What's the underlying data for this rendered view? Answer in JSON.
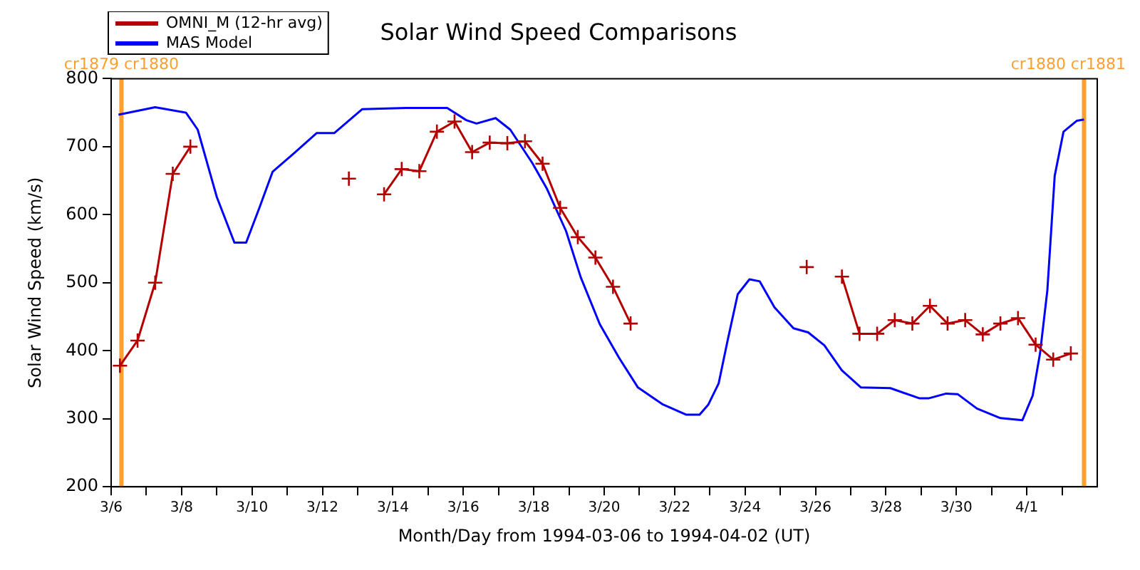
{
  "chart_data": {
    "type": "line",
    "title": "Solar Wind Speed Comparisons",
    "xlabel": "Month/Day from 1994-03-06 to 1994-04-02 (UT)",
    "ylabel": "Solar Wind Speed (km/s)",
    "xlim": [
      "1994-03-06",
      "1994-04-03"
    ],
    "xticks": [
      {
        "value": "1994-03-06",
        "label": "3/6"
      },
      {
        "value": "1994-03-07",
        "label": null
      },
      {
        "value": "1994-03-08",
        "label": "3/8"
      },
      {
        "value": "1994-03-09",
        "label": null
      },
      {
        "value": "1994-03-10",
        "label": "3/10"
      },
      {
        "value": "1994-03-11",
        "label": null
      },
      {
        "value": "1994-03-12",
        "label": "3/12"
      },
      {
        "value": "1994-03-13",
        "label": null
      },
      {
        "value": "1994-03-14",
        "label": "3/14"
      },
      {
        "value": "1994-03-15",
        "label": null
      },
      {
        "value": "1994-03-16",
        "label": "3/16"
      },
      {
        "value": "1994-03-17",
        "label": null
      },
      {
        "value": "1994-03-18",
        "label": "3/18"
      },
      {
        "value": "1994-03-19",
        "label": null
      },
      {
        "value": "1994-03-20",
        "label": "3/20"
      },
      {
        "value": "1994-03-21",
        "label": null
      },
      {
        "value": "1994-03-22",
        "label": "3/22"
      },
      {
        "value": "1994-03-23",
        "label": null
      },
      {
        "value": "1994-03-24",
        "label": "3/24"
      },
      {
        "value": "1994-03-25",
        "label": null
      },
      {
        "value": "1994-03-26",
        "label": "3/26"
      },
      {
        "value": "1994-03-27",
        "label": null
      },
      {
        "value": "1994-03-28",
        "label": "3/28"
      },
      {
        "value": "1994-03-29",
        "label": null
      },
      {
        "value": "1994-03-30",
        "label": "3/30"
      },
      {
        "value": "1994-03-31",
        "label": null
      },
      {
        "value": "1994-04-01",
        "label": "4/1"
      },
      {
        "value": "1994-04-02",
        "label": null
      }
    ],
    "ylim": [
      200,
      800
    ],
    "yticks": [
      200,
      300,
      400,
      500,
      600,
      700,
      800
    ],
    "grid": false,
    "legend": "top left",
    "ref_lines": [
      {
        "axis": "x",
        "value": "1994-03-06T07:00",
        "label": "cr1879 cr1880",
        "color": "#ff9f2f"
      },
      {
        "axis": "x",
        "value": "1994-04-02T15:00",
        "label": "cr1880 cr1881",
        "color": "#ff9f2f"
      }
    ],
    "series": [
      {
        "name": "OMNI_M (12-hr avg)",
        "color": "#b40000",
        "marker": "cross",
        "x": [
          "1994-03-06T06:00",
          "1994-03-06T18:00",
          "1994-03-07T06:00",
          "1994-03-07T18:00",
          "1994-03-08T06:00",
          "1994-03-08T18:00",
          "1994-03-12T18:00",
          "1994-03-13T06:00",
          "1994-03-13T18:00",
          "1994-03-14T06:00",
          "1994-03-14T18:00",
          "1994-03-15T06:00",
          "1994-03-15T18:00",
          "1994-03-16T06:00",
          "1994-03-16T18:00",
          "1994-03-17T06:00",
          "1994-03-17T18:00",
          "1994-03-18T06:00",
          "1994-03-18T18:00",
          "1994-03-19T06:00",
          "1994-03-19T18:00",
          "1994-03-20T06:00",
          "1994-03-20T18:00",
          "1994-03-21T06:00",
          "1994-03-25T18:00",
          "1994-03-26T06:00",
          "1994-03-26T18:00",
          "1994-03-27T06:00",
          "1994-03-27T18:00",
          "1994-03-28T06:00",
          "1994-03-28T18:00",
          "1994-03-29T06:00",
          "1994-03-29T18:00",
          "1994-03-30T06:00",
          "1994-03-30T18:00",
          "1994-03-31T06:00",
          "1994-03-31T18:00",
          "1994-04-01T06:00",
          "1994-04-01T18:00",
          "1994-04-02T06:00"
        ],
        "values": [
          378,
          415,
          500,
          660,
          700,
          null,
          653,
          null,
          630,
          667,
          664,
          722,
          737,
          692,
          706,
          705,
          708,
          675,
          610,
          567,
          537,
          494,
          440,
          null,
          523,
          null,
          509,
          425,
          425,
          445,
          440,
          466,
          440,
          445,
          424,
          440,
          448,
          409,
          387,
          396
        ]
      },
      {
        "name": "MAS Model",
        "color": "#0000ff",
        "marker": "none",
        "x": [
          "1994-03-06T05:00",
          "1994-03-07T06:00",
          "1994-03-08T03:00",
          "1994-03-08T11:00",
          "1994-03-09T00:00",
          "1994-03-09T12:00",
          "1994-03-09T20:00",
          "1994-03-10T05:00",
          "1994-03-10T14:00",
          "1994-03-11T05:00",
          "1994-03-11T20:00",
          "1994-03-12T08:00",
          "1994-03-13T03:00",
          "1994-03-14T09:00",
          "1994-03-15T13:00",
          "1994-03-16T02:00",
          "1994-03-16T09:00",
          "1994-03-16T22:00",
          "1994-03-17T08:00",
          "1994-03-17T23:00",
          "1994-03-18T09:00",
          "1994-03-18T22:00",
          "1994-03-19T08:00",
          "1994-03-19T21:00",
          "1994-03-20T10:00",
          "1994-03-20T23:00",
          "1994-03-21T16:00",
          "1994-03-22T08:00",
          "1994-03-22T17:00",
          "1994-03-22T23:00",
          "1994-03-23T06:00",
          "1994-03-23T12:00",
          "1994-03-23T19:00",
          "1994-03-24T03:00",
          "1994-03-24T10:00",
          "1994-03-24T20:00",
          "1994-03-25T09:00",
          "1994-03-25T19:00",
          "1994-03-26T06:00",
          "1994-03-26T18:00",
          "1994-03-27T07:00",
          "1994-03-28T03:00",
          "1994-03-28T23:00",
          "1994-03-29T05:00",
          "1994-03-29T17:00",
          "1994-03-30T01:00",
          "1994-03-30T14:00",
          "1994-03-31T06:00",
          "1994-03-31T21:00",
          "1994-04-01T04:00",
          "1994-04-01T09:00",
          "1994-04-01T14:00",
          "1994-04-01T19:00",
          "1994-04-02T01:00",
          "1994-04-02T10:00",
          "1994-04-02T15:00"
        ],
        "values": [
          747,
          758,
          750,
          725,
          626,
          559,
          559,
          610,
          663,
          691,
          720,
          720,
          755,
          757,
          757,
          739,
          734,
          742,
          725,
          676,
          638,
          576,
          508,
          439,
          390,
          346,
          321,
          306,
          306,
          321,
          352,
          414,
          483,
          505,
          502,
          464,
          433,
          427,
          408,
          371,
          346,
          345,
          330,
          330,
          337,
          336,
          315,
          301,
          298,
          334,
          396,
          489,
          657,
          722,
          738,
          740
        ]
      }
    ]
  }
}
